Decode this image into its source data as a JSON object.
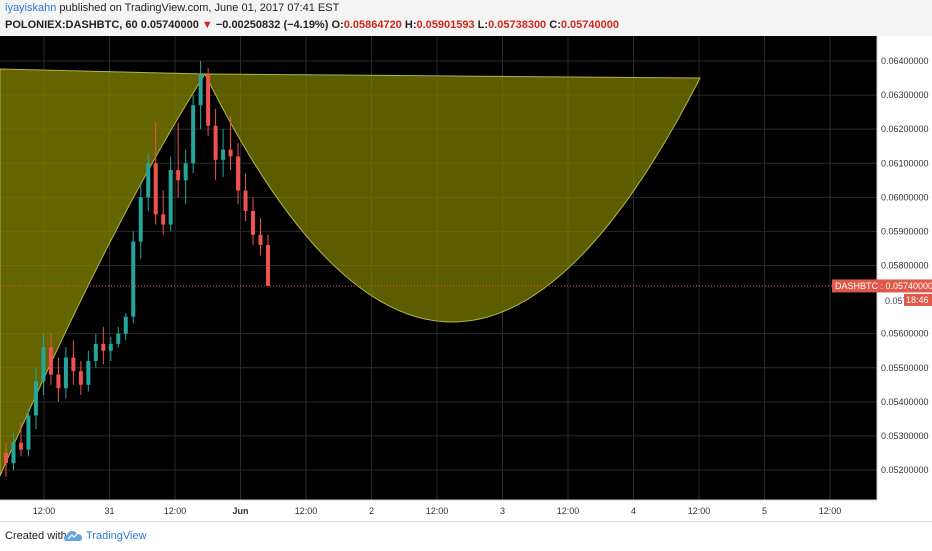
{
  "header": {
    "author": "iyayiskahn",
    "published_text": "published on TradingView.com, June 01, 2017 07:41 EST",
    "symbol": "POLONIEX:DASHBTC, 60",
    "last": "0.05740000",
    "change_arrow": "▼",
    "change": "−0.00250832 (−4.19%)",
    "o_label": "O:",
    "o": "0.05864720",
    "h_label": "H:",
    "h": "0.05901593",
    "l_label": "L:",
    "l": "0.05738300",
    "c_label": "C:",
    "c": "0.05740000"
  },
  "footer": {
    "created_with": "Created with",
    "brand": "TradingView"
  },
  "colors": {
    "background": "#000000",
    "fill": "#808000",
    "up": "#26a69a",
    "down": "#ef5350",
    "price_line": "#e0584a",
    "axis_bg": "#ffffff",
    "grid": "#2a2a2a"
  },
  "chart_data": {
    "type": "candlestick",
    "y_ticks": [
      "0.06400000",
      "0.06300000",
      "0.06200000",
      "0.06100000",
      "0.06000000",
      "0.05900000",
      "0.05800000",
      "0.05600000",
      "0.05500000",
      "0.05400000",
      "0.05300000",
      "0.05200000"
    ],
    "y_tick_values": [
      0.064,
      0.063,
      0.062,
      0.061,
      0.06,
      0.059,
      0.058,
      0.056,
      0.055,
      0.054,
      0.053,
      0.052
    ],
    "ylim": [
      0.0512,
      0.0651
    ],
    "x_ticks": [
      "12:00",
      "31",
      "12:00",
      "Jun",
      "12:00",
      "2",
      "12:00",
      "3",
      "12:00",
      "4",
      "12:00",
      "5",
      "12:00"
    ],
    "x_tick_bold": [
      false,
      false,
      false,
      true,
      false,
      false,
      false,
      false,
      false,
      false,
      false,
      false,
      false
    ],
    "price_label": "DASHBTC",
    "price_value": "0.05740000",
    "price": 0.0574,
    "secondary_label_value": "0.057",
    "countdown": "18:46",
    "candles": [
      {
        "o": 0.0525,
        "h": 0.0528,
        "l": 0.0518,
        "c": 0.0522
      },
      {
        "o": 0.0522,
        "h": 0.0531,
        "l": 0.052,
        "c": 0.0528
      },
      {
        "o": 0.0528,
        "h": 0.0534,
        "l": 0.0524,
        "c": 0.0526
      },
      {
        "o": 0.0526,
        "h": 0.0538,
        "l": 0.0524,
        "c": 0.0536
      },
      {
        "o": 0.0536,
        "h": 0.055,
        "l": 0.0532,
        "c": 0.0546
      },
      {
        "o": 0.0546,
        "h": 0.056,
        "l": 0.0542,
        "c": 0.0556
      },
      {
        "o": 0.0556,
        "h": 0.056,
        "l": 0.0545,
        "c": 0.0548
      },
      {
        "o": 0.0548,
        "h": 0.0553,
        "l": 0.054,
        "c": 0.0544
      },
      {
        "o": 0.0544,
        "h": 0.0556,
        "l": 0.0541,
        "c": 0.0553
      },
      {
        "o": 0.0553,
        "h": 0.0558,
        "l": 0.0545,
        "c": 0.0549
      },
      {
        "o": 0.0549,
        "h": 0.0552,
        "l": 0.0542,
        "c": 0.0545
      },
      {
        "o": 0.0545,
        "h": 0.0555,
        "l": 0.0543,
        "c": 0.0552
      },
      {
        "o": 0.0552,
        "h": 0.056,
        "l": 0.055,
        "c": 0.0557
      },
      {
        "o": 0.0557,
        "h": 0.0562,
        "l": 0.0551,
        "c": 0.0555
      },
      {
        "o": 0.0555,
        "h": 0.0559,
        "l": 0.0552,
        "c": 0.0557
      },
      {
        "o": 0.0557,
        "h": 0.0562,
        "l": 0.0556,
        "c": 0.056
      },
      {
        "o": 0.056,
        "h": 0.0566,
        "l": 0.0558,
        "c": 0.0565
      },
      {
        "o": 0.0565,
        "h": 0.059,
        "l": 0.0563,
        "c": 0.0587
      },
      {
        "o": 0.0587,
        "h": 0.0604,
        "l": 0.0582,
        "c": 0.06
      },
      {
        "o": 0.06,
        "h": 0.0613,
        "l": 0.0596,
        "c": 0.061
      },
      {
        "o": 0.061,
        "h": 0.0622,
        "l": 0.0592,
        "c": 0.0595
      },
      {
        "o": 0.0595,
        "h": 0.0602,
        "l": 0.0589,
        "c": 0.0592
      },
      {
        "o": 0.0592,
        "h": 0.0612,
        "l": 0.059,
        "c": 0.0608
      },
      {
        "o": 0.0608,
        "h": 0.0622,
        "l": 0.06,
        "c": 0.0605
      },
      {
        "o": 0.0605,
        "h": 0.0614,
        "l": 0.0598,
        "c": 0.061
      },
      {
        "o": 0.061,
        "h": 0.063,
        "l": 0.0607,
        "c": 0.0627
      },
      {
        "o": 0.0627,
        "h": 0.064,
        "l": 0.062,
        "c": 0.0636
      },
      {
        "o": 0.0636,
        "h": 0.0638,
        "l": 0.0618,
        "c": 0.0621
      },
      {
        "o": 0.0621,
        "h": 0.0626,
        "l": 0.0605,
        "c": 0.0611
      },
      {
        "o": 0.0611,
        "h": 0.062,
        "l": 0.0606,
        "c": 0.0614
      },
      {
        "o": 0.0614,
        "h": 0.0624,
        "l": 0.0608,
        "c": 0.0612
      },
      {
        "o": 0.0612,
        "h": 0.0616,
        "l": 0.0598,
        "c": 0.0602
      },
      {
        "o": 0.0602,
        "h": 0.0607,
        "l": 0.0593,
        "c": 0.0596
      },
      {
        "o": 0.0596,
        "h": 0.06,
        "l": 0.0586,
        "c": 0.0589
      },
      {
        "o": 0.0589,
        "h": 0.0594,
        "l": 0.0583,
        "c": 0.0586
      },
      {
        "o": 0.0586,
        "h": 0.0589,
        "l": 0.0574,
        "c": 0.0574
      }
    ]
  }
}
